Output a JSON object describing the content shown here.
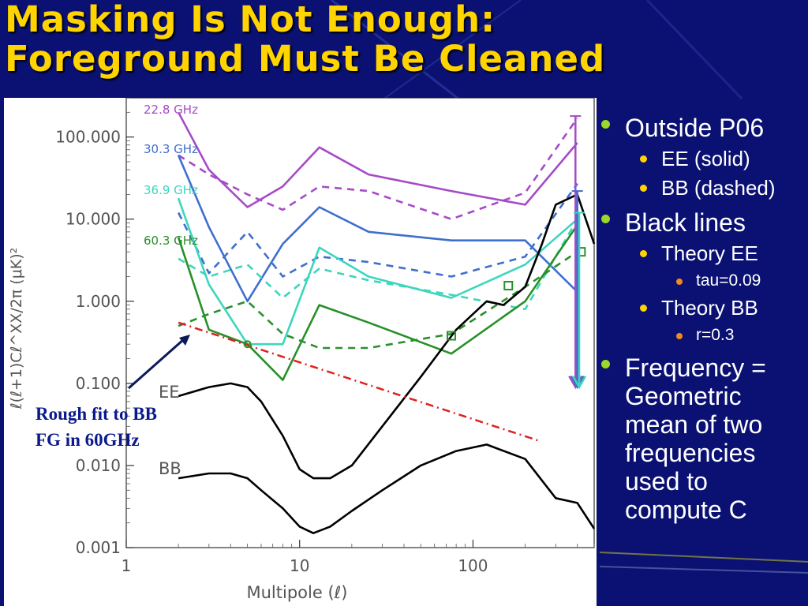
{
  "slide": {
    "title_lines": [
      "Masking Is Not Enough:",
      "Foreground Must Be Cleaned"
    ],
    "annotation_lines": [
      "Rough fit to BB",
      "FG in 60GHz"
    ],
    "bullets": [
      {
        "level": 1,
        "text": "Outside P06"
      },
      {
        "level": 2,
        "text": "EE (solid)"
      },
      {
        "level": 2,
        "text": "BB (dashed)"
      },
      {
        "level": 1,
        "text": "Black lines"
      },
      {
        "level": 2,
        "text": "Theory EE"
      },
      {
        "level": 3,
        "text": "tau=0.09"
      },
      {
        "level": 2,
        "text": "Theory BB"
      },
      {
        "level": 3,
        "text": "r=0.3"
      },
      {
        "level": 1,
        "text": "Frequency = Geometric mean of two frequencies used to compute C"
      }
    ],
    "colors": {
      "background": "#0a1172",
      "title": "#ffd400",
      "annotation": "#0b1a8a"
    }
  },
  "chart_data": {
    "type": "line",
    "xlabel": "Multipole (ℓ)",
    "ylabel": "ℓ(ℓ+1)Cℓ^XX/2π  (μK)²",
    "xscale": "log",
    "yscale": "log",
    "xlim": [
      1,
      500
    ],
    "ylim": [
      0.001,
      300
    ],
    "x_ticks": [
      1,
      10,
      100
    ],
    "x_tick_labels": [
      "1",
      "10",
      "100"
    ],
    "y_ticks": [
      0.001,
      0.01,
      0.1,
      1,
      10,
      100
    ],
    "y_tick_labels": [
      "0.001",
      "0.010",
      "0.100",
      "1.000",
      "10.000",
      "100.000"
    ],
    "grid": false,
    "series": [
      {
        "name": "22.8 GHz",
        "color": "#a64bc6",
        "style": "solid",
        "x": [
          2,
          3,
          5,
          8,
          13,
          25,
          75,
          200,
          400
        ],
        "y": [
          200,
          40,
          14,
          25,
          75,
          35,
          22,
          15,
          85
        ]
      },
      {
        "color": "#a64bc6",
        "style": "dashed",
        "x": [
          2,
          3,
          5,
          8,
          13,
          25,
          75,
          200,
          400
        ],
        "y": [
          60,
          35,
          20,
          13,
          25,
          22,
          10,
          21,
          170
        ]
      },
      {
        "name": "30.3 GHz",
        "color": "#3f6fcc",
        "style": "solid",
        "x": [
          2,
          3,
          5,
          8,
          13,
          25,
          75,
          200,
          400
        ],
        "y": [
          60,
          8,
          1,
          5,
          14,
          7,
          5.5,
          5.5,
          1.3
        ]
      },
      {
        "color": "#3f6fcc",
        "style": "dashed",
        "x": [
          2,
          3,
          5,
          8,
          13,
          25,
          75,
          200,
          400
        ],
        "y": [
          12,
          2.2,
          7,
          2,
          3.5,
          3,
          2,
          3.5,
          27
        ]
      },
      {
        "name": "36.9 GHz",
        "color": "#3dd6bd",
        "style": "solid",
        "x": [
          2,
          3,
          5,
          8,
          13,
          25,
          75,
          200,
          400
        ],
        "y": [
          18,
          1.6,
          0.3,
          0.3,
          4.5,
          2,
          1.1,
          2.8,
          10
        ]
      },
      {
        "color": "#3dd6bd",
        "style": "dashed",
        "x": [
          2,
          3,
          5,
          8,
          13,
          25,
          75,
          200,
          400
        ],
        "y": [
          3.3,
          2,
          2.8,
          1.1,
          2.5,
          1.8,
          1.2,
          0.8,
          10
        ]
      },
      {
        "name": "60.3 GHz",
        "color": "#28902a",
        "style": "solid",
        "x": [
          2,
          3,
          5,
          8,
          13,
          25,
          75,
          200,
          400
        ],
        "y": [
          6,
          0.45,
          0.3,
          0.11,
          0.9,
          0.55,
          0.23,
          1,
          8.5
        ]
      },
      {
        "color": "#28902a",
        "style": "dashed",
        "x": [
          2,
          3,
          5,
          8,
          13,
          25,
          75,
          200,
          400
        ],
        "y": [
          0.5,
          0.7,
          1,
          0.4,
          0.27,
          0.27,
          0.4,
          1.5,
          4
        ]
      },
      {
        "name": "EE",
        "color": "#000000",
        "style": "solid",
        "x": [
          2,
          3,
          4,
          5,
          6,
          8,
          10,
          12,
          15,
          20,
          30,
          50,
          80,
          120,
          150,
          200,
          250,
          300,
          400,
          500
        ],
        "y": [
          0.07,
          0.09,
          0.1,
          0.09,
          0.06,
          0.023,
          0.009,
          0.007,
          0.007,
          0.01,
          0.03,
          0.12,
          0.45,
          1,
          0.9,
          1.5,
          5,
          15,
          20,
          5
        ]
      },
      {
        "name": "BB",
        "color": "#000000",
        "style": "solid",
        "x": [
          2,
          3,
          4,
          5,
          6,
          8,
          10,
          12,
          15,
          20,
          30,
          50,
          80,
          120,
          200,
          300,
          400,
          500
        ],
        "y": [
          0.007,
          0.008,
          0.008,
          0.007,
          0.005,
          0.003,
          0.0018,
          0.0015,
          0.0018,
          0.0028,
          0.005,
          0.01,
          0.015,
          0.018,
          0.012,
          0.004,
          0.0035,
          0.0017
        ]
      },
      {
        "name": "Rough fit to BB FG in 60GHz",
        "color": "#e02020",
        "style": "dashdot",
        "x": [
          2,
          240
        ],
        "y": [
          0.55,
          0.02
        ]
      }
    ],
    "markers": [
      {
        "color": "#28902a",
        "shape": "circle",
        "points": [
          [
            5,
            0.3
          ]
        ]
      },
      {
        "color": "#28902a",
        "shape": "square",
        "points": [
          [
            75,
            0.38
          ],
          [
            160,
            1.55
          ],
          [
            420,
            4
          ]
        ]
      }
    ],
    "error_bars": [
      {
        "color": "#a64bc6",
        "x": 390,
        "y_low": 0.09,
        "y_high": 180
      },
      {
        "color": "#3f6fcc",
        "x": 400,
        "y_low": 0.09,
        "y_high": 22
      },
      {
        "color": "#3dd6bd",
        "x": 410,
        "y_low": 0.09,
        "y_high": 12
      }
    ]
  }
}
